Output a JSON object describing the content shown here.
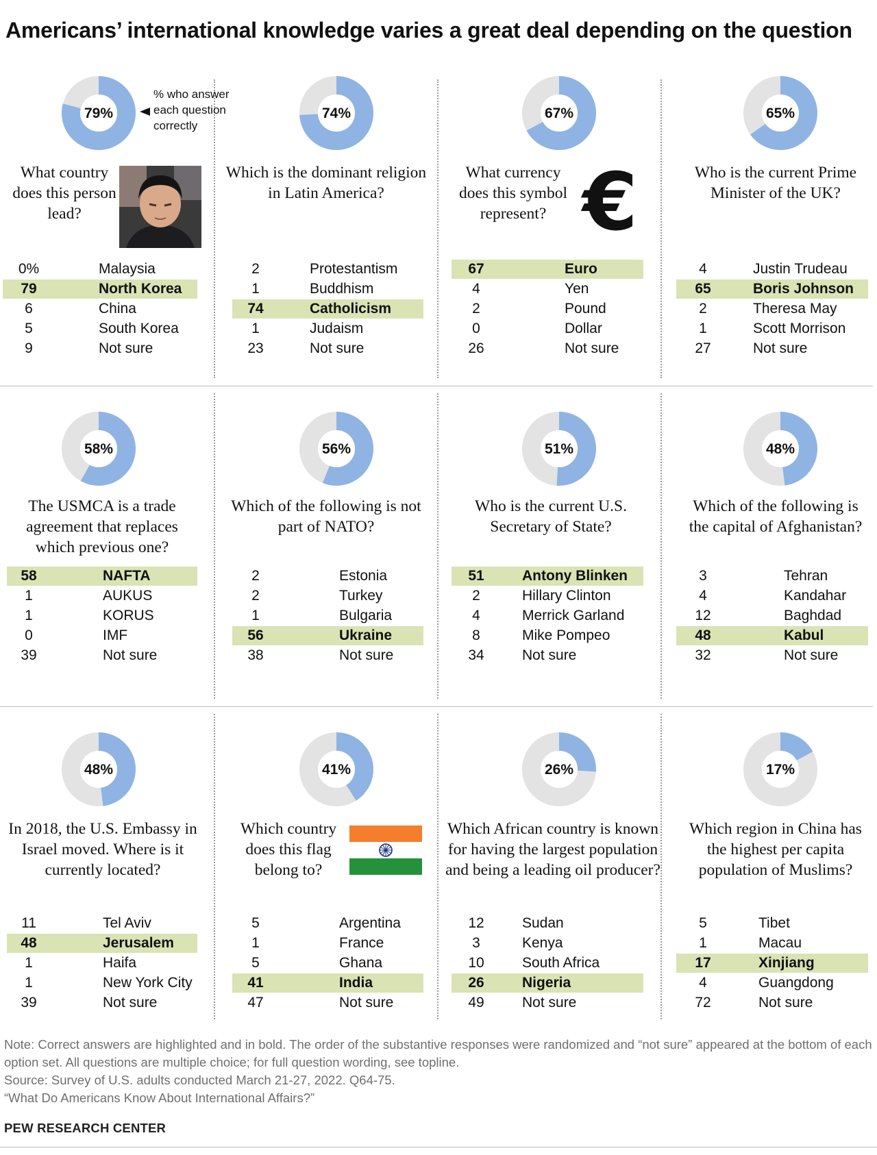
{
  "title": "Americans’ international knowledge varies a great deal depending on the question",
  "legend_note": [
    "% who answer",
    "each question",
    "correctly"
  ],
  "colors": {
    "correct_arc": "#8fb4e3",
    "incorrect_arc": "#e3e3e3",
    "highlight": "#d9e3b4"
  },
  "chart_data": {
    "type": "donut-grid",
    "unit": "%",
    "panels": [
      {
        "question": "What country does this person lead?",
        "image": "leader-photo",
        "correct_pct": 79,
        "answers": [
          {
            "pct": "0%",
            "label": "Malaysia"
          },
          {
            "pct": "79",
            "label": "North Korea",
            "correct": true
          },
          {
            "pct": "6",
            "label": "China"
          },
          {
            "pct": "5",
            "label": "South Korea"
          },
          {
            "pct": "9",
            "label": "Not sure"
          }
        ]
      },
      {
        "question": "Which is the dominant religion in Latin America?",
        "correct_pct": 74,
        "answers": [
          {
            "pct": "2",
            "label": "Protestantism"
          },
          {
            "pct": "1",
            "label": "Buddhism"
          },
          {
            "pct": "74",
            "label": "Catholicism",
            "correct": true
          },
          {
            "pct": "1",
            "label": "Judaism"
          },
          {
            "pct": "23",
            "label": "Not sure"
          }
        ]
      },
      {
        "question": "What currency does this symbol represent?",
        "image": "euro-symbol",
        "symbol": "€",
        "correct_pct": 67,
        "answers": [
          {
            "pct": "67",
            "label": "Euro",
            "correct": true
          },
          {
            "pct": "4",
            "label": "Yen"
          },
          {
            "pct": "2",
            "label": "Pound"
          },
          {
            "pct": "0",
            "label": "Dollar"
          },
          {
            "pct": "26",
            "label": "Not sure"
          }
        ]
      },
      {
        "question": "Who is the current Prime Minister of the UK?",
        "correct_pct": 65,
        "answers": [
          {
            "pct": "4",
            "label": "Justin Trudeau"
          },
          {
            "pct": "65",
            "label": "Boris Johnson",
            "correct": true
          },
          {
            "pct": "2",
            "label": "Theresa May"
          },
          {
            "pct": "1",
            "label": "Scott Morrison"
          },
          {
            "pct": "27",
            "label": "Not sure"
          }
        ]
      },
      {
        "question": "The USMCA is a trade agreement that replaces which previous one?",
        "correct_pct": 58,
        "answers": [
          {
            "pct": "58",
            "label": "NAFTA",
            "correct": true
          },
          {
            "pct": "1",
            "label": "AUKUS"
          },
          {
            "pct": "1",
            "label": "KORUS"
          },
          {
            "pct": "0",
            "label": "IMF"
          },
          {
            "pct": "39",
            "label": "Not sure"
          }
        ]
      },
      {
        "question": "Which of the following is not part of NATO?",
        "correct_pct": 56,
        "answers": [
          {
            "pct": "2",
            "label": "Estonia"
          },
          {
            "pct": "2",
            "label": "Turkey"
          },
          {
            "pct": "1",
            "label": "Bulgaria"
          },
          {
            "pct": "56",
            "label": "Ukraine",
            "correct": true
          },
          {
            "pct": "38",
            "label": "Not sure"
          }
        ]
      },
      {
        "question": "Who is the current U.S. Secretary of State?",
        "correct_pct": 51,
        "answers": [
          {
            "pct": "51",
            "label": "Antony Blinken",
            "correct": true
          },
          {
            "pct": "2",
            "label": "Hillary Clinton"
          },
          {
            "pct": "4",
            "label": "Merrick Garland"
          },
          {
            "pct": "8",
            "label": "Mike Pompeo"
          },
          {
            "pct": "34",
            "label": "Not sure"
          }
        ]
      },
      {
        "question": "Which of the following is the capital of Afghanistan?",
        "correct_pct": 48,
        "answers": [
          {
            "pct": "3",
            "label": "Tehran"
          },
          {
            "pct": "4",
            "label": "Kandahar"
          },
          {
            "pct": "12",
            "label": "Baghdad"
          },
          {
            "pct": "48",
            "label": "Kabul",
            "correct": true
          },
          {
            "pct": "32",
            "label": "Not sure"
          }
        ]
      },
      {
        "question": "In 2018, the U.S. Embassy in Israel moved. Where is it currently located?",
        "correct_pct": 48,
        "answers": [
          {
            "pct": "11",
            "label": "Tel Aviv"
          },
          {
            "pct": "48",
            "label": "Jerusalem",
            "correct": true
          },
          {
            "pct": "1",
            "label": "Haifa"
          },
          {
            "pct": "1",
            "label": "New York City"
          },
          {
            "pct": "39",
            "label": "Not sure"
          }
        ]
      },
      {
        "question": "Which country does this flag belong to?",
        "image": "india-flag",
        "correct_pct": 41,
        "answers": [
          {
            "pct": "5",
            "label": "Argentina"
          },
          {
            "pct": "1",
            "label": "France"
          },
          {
            "pct": "5",
            "label": "Ghana"
          },
          {
            "pct": "41",
            "label": "India",
            "correct": true
          },
          {
            "pct": "47",
            "label": "Not sure"
          }
        ]
      },
      {
        "question": "Which African country is known for having the largest population and being a leading oil producer?",
        "correct_pct": 26,
        "answers": [
          {
            "pct": "12",
            "label": "Sudan"
          },
          {
            "pct": "3",
            "label": "Kenya"
          },
          {
            "pct": "10",
            "label": "South Africa"
          },
          {
            "pct": "26",
            "label": "Nigeria",
            "correct": true
          },
          {
            "pct": "49",
            "label": "Not sure"
          }
        ]
      },
      {
        "question": "Which region in China has the highest per capita population of Muslims?",
        "correct_pct": 17,
        "answers": [
          {
            "pct": "5",
            "label": "Tibet"
          },
          {
            "pct": "1",
            "label": "Macau"
          },
          {
            "pct": "17",
            "label": "Xinjiang",
            "correct": true
          },
          {
            "pct": "4",
            "label": "Guangdong"
          },
          {
            "pct": "72",
            "label": "Not sure"
          }
        ]
      }
    ]
  },
  "note": "Note: Correct answers are highlighted and in bold. The order of the substantive responses were randomized and “not sure” appeared at the bottom of each option set. All questions are multiple choice; for full question wording, see topline.",
  "source": "Source: Survey of U.S. adults conducted March 21-27, 2022. Q64-75.",
  "report": "“What Do Americans Know About International Affairs?”",
  "brand": "PEW RESEARCH CENTER"
}
